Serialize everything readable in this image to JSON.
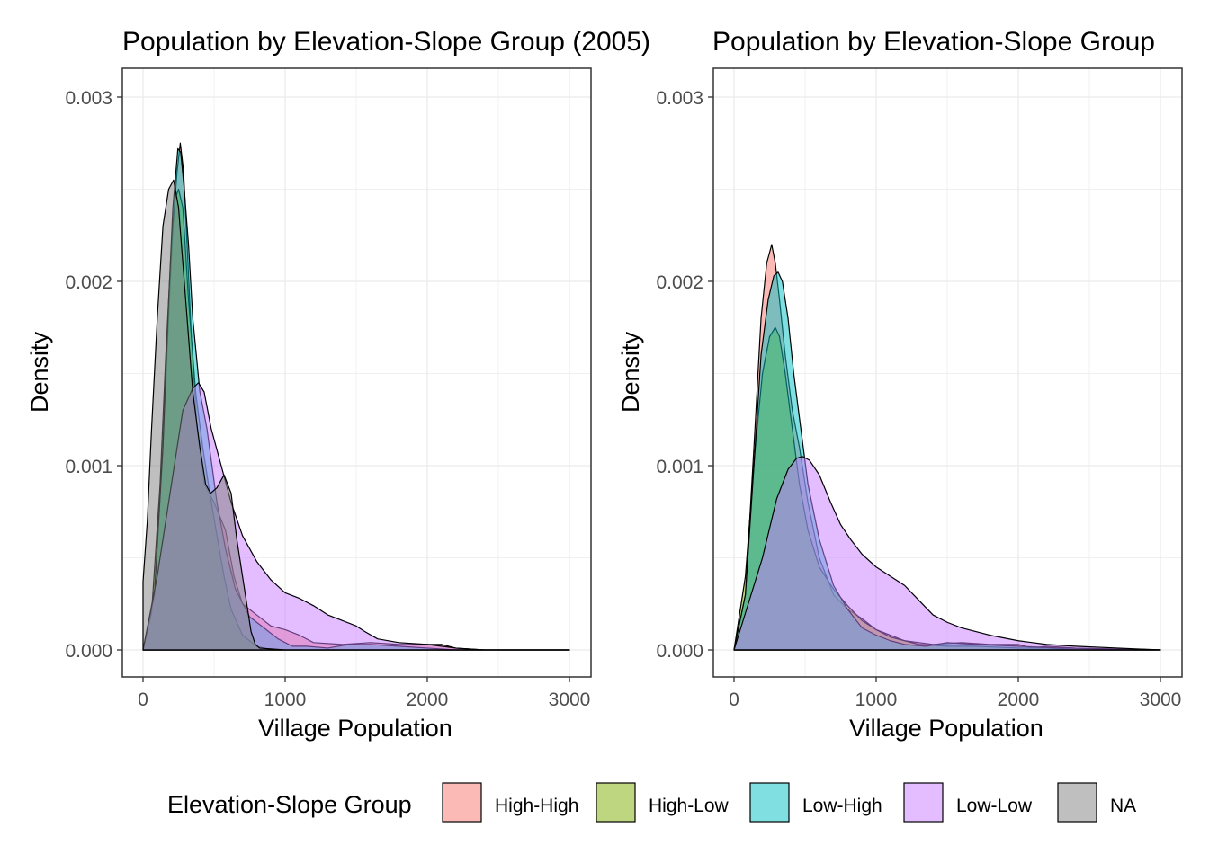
{
  "legend": {
    "title": "Elevation-Slope Group",
    "items": [
      {
        "label": "High-High",
        "color": "#F8766D"
      },
      {
        "label": "High-Low",
        "color": "#7CAE00"
      },
      {
        "label": "Low-High",
        "color": "#00BFC4"
      },
      {
        "label": "Low-Low",
        "color": "#C77CFF"
      },
      {
        "label": "NA",
        "color": "#7F7F7F"
      }
    ]
  },
  "chart_data": [
    {
      "type": "area",
      "title": "Population by Elevation-Slope Group (2005)",
      "xlabel": "Village Population",
      "ylabel": "Density",
      "xlim": [
        0,
        3000
      ],
      "ylim": [
        0,
        0.003
      ],
      "xticks": [
        "0",
        "1000",
        "2000",
        "3000"
      ],
      "yticks": [
        "0.000",
        "0.001",
        "0.002",
        "0.003"
      ],
      "grid": true,
      "fill_opacity": 0.5,
      "series": [
        {
          "name": "High-High",
          "x": [
            0,
            80,
            140,
            180,
            210,
            240,
            262,
            285,
            310,
            340,
            380,
            430,
            500,
            580,
            640,
            700,
            800,
            900,
            1000,
            1100,
            1200,
            1400,
            1600,
            1800,
            2000,
            2100,
            2200,
            2400,
            3000
          ],
          "y": [
            0,
            0.0003,
            0.0011,
            0.0018,
            0.0023,
            0.0026,
            0.00275,
            0.0026,
            0.0022,
            0.0017,
            0.0012,
            0.0009,
            0.0008,
            0.00065,
            0.0004,
            0.00025,
            0.00019,
            0.00013,
            0.00011,
            8e-05,
            4e-05,
            3e-05,
            4e-05,
            3e-05,
            3e-05,
            3e-05,
            1e-05,
            0,
            0
          ]
        },
        {
          "name": "High-Low",
          "x": [
            0,
            60,
            120,
            160,
            200,
            225,
            250,
            280,
            320,
            370,
            420,
            470,
            520,
            570,
            620,
            700,
            800,
            850,
            900,
            1000,
            3000
          ],
          "y": [
            0,
            0.0002,
            0.0009,
            0.0016,
            0.0022,
            0.00245,
            0.0025,
            0.0024,
            0.0019,
            0.0014,
            0.0011,
            0.00085,
            0.00062,
            0.0004,
            0.00022,
            8e-05,
            2e-05,
            1e-05,
            0,
            0,
            0
          ]
        },
        {
          "name": "Low-High",
          "x": [
            0,
            80,
            140,
            180,
            210,
            245,
            265,
            290,
            320,
            350,
            400,
            450,
            520,
            580,
            650,
            750,
            850,
            950,
            1050,
            1150,
            1300,
            1450,
            1600,
            1800,
            2000,
            2200,
            3000
          ],
          "y": [
            0,
            0.0003,
            0.0011,
            0.0019,
            0.0024,
            0.00272,
            0.0027,
            0.0025,
            0.0022,
            0.0018,
            0.0014,
            0.0012,
            0.0008,
            0.00055,
            0.00033,
            0.00018,
            0.00012,
            6e-05,
            2e-05,
            2e-05,
            1e-05,
            3e-05,
            3e-05,
            2e-05,
            1e-05,
            0,
            0
          ]
        },
        {
          "name": "Low-Low",
          "x": [
            0,
            100,
            200,
            280,
            350,
            390,
            430,
            480,
            550,
            620,
            700,
            800,
            900,
            1000,
            1100,
            1200,
            1300,
            1400,
            1500,
            1560,
            1650,
            1800,
            2000,
            2100,
            2200,
            2400,
            3000
          ],
          "y": [
            0,
            0.0004,
            0.0009,
            0.0013,
            0.00142,
            0.00145,
            0.0014,
            0.0012,
            0.001,
            0.0008,
            0.00062,
            0.00048,
            0.00038,
            0.00031,
            0.00028,
            0.00024,
            0.00019,
            0.00016,
            0.00013,
            0.0001,
            6e-05,
            4e-05,
            3e-05,
            2e-05,
            1e-05,
            0,
            0
          ]
        },
        {
          "name": "NA",
          "x": [
            0,
            30,
            60,
            100,
            140,
            180,
            215,
            250,
            300,
            350,
            400,
            440,
            475,
            520,
            570,
            620,
            660,
            720,
            760,
            790,
            820,
            1000,
            3000
          ],
          "y": [
            0.00037,
            0.0007,
            0.0012,
            0.0018,
            0.0023,
            0.0025,
            0.00255,
            0.0024,
            0.0019,
            0.0014,
            0.0011,
            0.0009,
            0.00085,
            0.00088,
            0.00095,
            0.00085,
            0.0006,
            0.0003,
            0.0001,
            3e-05,
            1e-05,
            0,
            0
          ]
        }
      ]
    },
    {
      "type": "area",
      "title": "Population by Elevation-Slope Group",
      "xlabel": "Village Population",
      "ylabel": "Density",
      "xlim": [
        0,
        3000
      ],
      "ylim": [
        0,
        0.003
      ],
      "xticks": [
        "0",
        "1000",
        "2000",
        "3000"
      ],
      "yticks": [
        "0.000",
        "0.001",
        "0.002",
        "0.003"
      ],
      "grid": true,
      "fill_opacity": 0.5,
      "series": [
        {
          "name": "High-High",
          "x": [
            0,
            80,
            140,
            190,
            230,
            265,
            290,
            320,
            360,
            410,
            460,
            520,
            600,
            700,
            800,
            900,
            1000,
            1100,
            1200,
            1300,
            1400,
            1600,
            1800,
            2000,
            2100,
            2200,
            2400,
            3000
          ],
          "y": [
            0,
            0.0003,
            0.0011,
            0.0018,
            0.0021,
            0.0022,
            0.0021,
            0.0019,
            0.0016,
            0.0013,
            0.0011,
            0.0008,
            0.0005,
            0.0003,
            0.00022,
            0.00017,
            0.00011,
            8e-05,
            5e-05,
            4e-05,
            3e-05,
            4e-05,
            3e-05,
            3e-05,
            1e-05,
            2e-05,
            1e-05,
            0
          ]
        },
        {
          "name": "High-Low",
          "x": [
            0,
            80,
            150,
            200,
            250,
            290,
            320,
            360,
            410,
            460,
            520,
            600,
            700,
            800,
            900,
            1000,
            1100,
            1200,
            1300,
            1500,
            1700,
            2000,
            2200,
            2400,
            3000
          ],
          "y": [
            0,
            0.0004,
            0.0011,
            0.0015,
            0.0017,
            0.00175,
            0.0017,
            0.0015,
            0.0012,
            0.0009,
            0.00065,
            0.00045,
            0.00033,
            0.00024,
            0.00016,
            0.00011,
            7e-05,
            5e-05,
            3e-05,
            2e-05,
            2e-05,
            1e-05,
            1e-05,
            0,
            0
          ]
        },
        {
          "name": "Low-High",
          "x": [
            0,
            80,
            140,
            190,
            240,
            280,
            310,
            340,
            380,
            420,
            470,
            520,
            600,
            700,
            800,
            900,
            1000,
            1100,
            1200,
            1350,
            1500,
            1700,
            2000,
            2300,
            3000
          ],
          "y": [
            0,
            0.0003,
            0.001,
            0.0016,
            0.0019,
            0.00203,
            0.00205,
            0.002,
            0.0018,
            0.0015,
            0.0012,
            0.0009,
            0.0006,
            0.00035,
            0.00022,
            0.00012,
            8e-05,
            5e-05,
            3e-05,
            2e-05,
            4e-05,
            3e-05,
            2e-05,
            1e-05,
            0
          ]
        },
        {
          "name": "Low-Low",
          "x": [
            0,
            100,
            200,
            300,
            380,
            440,
            480,
            530,
            600,
            680,
            750,
            820,
            900,
            1000,
            1100,
            1200,
            1300,
            1400,
            1500,
            1600,
            1800,
            2000,
            2200,
            2400,
            2700,
            3000
          ],
          "y": [
            0,
            0.00025,
            0.0005,
            0.00082,
            0.00098,
            0.00104,
            0.00105,
            0.00103,
            0.00095,
            0.0008,
            0.00068,
            0.0006,
            0.00052,
            0.00045,
            0.0004,
            0.00035,
            0.00027,
            0.00019,
            0.00015,
            0.00012,
            8e-05,
            5e-05,
            3e-05,
            2e-05,
            1e-05,
            0
          ]
        },
        {
          "name": "NA",
          "x": [
            0,
            3000
          ],
          "y": [
            0,
            0
          ]
        }
      ]
    }
  ]
}
